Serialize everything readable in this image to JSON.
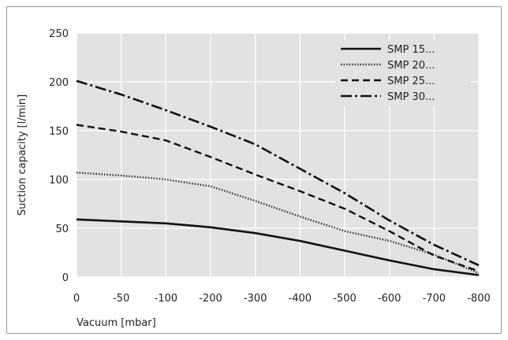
{
  "chart_data": {
    "type": "line",
    "title": "",
    "xlabel": "Vacuum [mbar]",
    "ylabel": "Suction capacity [l/min]",
    "x_categories": [
      "0",
      "-50",
      "-100",
      "-200",
      "-300",
      "-400",
      "-500",
      "-600",
      "-700",
      "-800"
    ],
    "ylim": [
      0,
      250
    ],
    "yticks": [
      "0",
      "50",
      "100",
      "150",
      "200",
      "250"
    ],
    "grid": true,
    "legend_position": "top-right",
    "series": [
      {
        "name": "SMP 15...",
        "style": "solid",
        "color": "#111111",
        "points": [
          [
            0,
            59
          ],
          [
            1,
            57
          ],
          [
            2,
            55
          ],
          [
            3,
            51
          ],
          [
            4,
            45
          ],
          [
            5,
            37
          ],
          [
            6,
            27
          ],
          [
            7,
            17
          ],
          [
            8,
            8
          ],
          [
            9,
            2
          ]
        ]
      },
      {
        "name": "SMP 20...",
        "style": "dotted",
        "color": "#333333",
        "points": [
          [
            0,
            107
          ],
          [
            1,
            104
          ],
          [
            2,
            100
          ],
          [
            3,
            93
          ],
          [
            4,
            78
          ],
          [
            5,
            62
          ],
          [
            6,
            47
          ],
          [
            7,
            37
          ],
          [
            8,
            23
          ],
          [
            9,
            4
          ]
        ]
      },
      {
        "name": "SMP 25...",
        "style": "dashed",
        "color": "#111111",
        "points": [
          [
            0,
            156
          ],
          [
            1,
            149
          ],
          [
            2,
            140
          ],
          [
            3,
            123
          ],
          [
            4,
            105
          ],
          [
            5,
            88
          ],
          [
            6,
            70
          ],
          [
            7,
            47
          ],
          [
            8,
            22
          ],
          [
            9,
            6
          ]
        ]
      },
      {
        "name": "SMP 30...",
        "style": "dashdot",
        "color": "#111111",
        "points": [
          [
            0,
            201
          ],
          [
            1,
            187
          ],
          [
            2,
            171
          ],
          [
            3,
            154
          ],
          [
            4,
            136
          ],
          [
            5,
            111
          ],
          [
            6,
            86
          ],
          [
            7,
            58
          ],
          [
            8,
            33
          ],
          [
            9,
            12
          ]
        ]
      }
    ]
  }
}
